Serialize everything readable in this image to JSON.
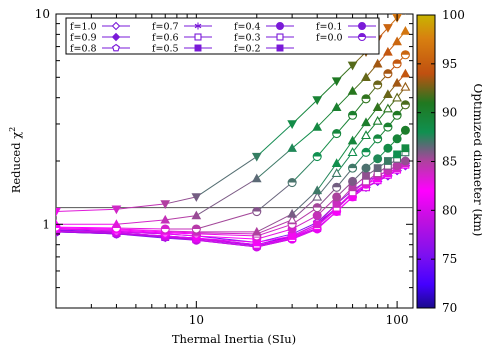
{
  "chart_data": {
    "type": "line",
    "xlabel": "Thermal Inertia (SIu)",
    "ylabel": "Reduced χ",
    "ylabel_sup": "2",
    "x_scale": "log",
    "y_scale": "log",
    "xlim": [
      2,
      120
    ],
    "ylim": [
      0.4,
      10
    ],
    "x_ticks": [
      10,
      100
    ],
    "x_tick_labels": [
      "10",
      "100"
    ],
    "y_ticks": [
      1,
      10
    ],
    "y_tick_labels": [
      "1",
      "10"
    ],
    "reference_line": 1.2,
    "legend_position": "top",
    "x": [
      2,
      4,
      7,
      10,
      20,
      30,
      40,
      50,
      60,
      70,
      80,
      90,
      100,
      110
    ],
    "series": [
      {
        "name": "f=1.0",
        "marker": "diamond-open",
        "y": [
          0.92,
          0.9,
          0.87,
          0.85,
          0.8,
          0.88,
          1.0,
          1.2,
          1.4,
          1.5,
          1.6,
          1.7,
          1.8,
          1.9
        ]
      },
      {
        "name": "f=0.9",
        "marker": "diamond-filled",
        "y": [
          0.93,
          0.91,
          0.88,
          0.86,
          0.8,
          0.88,
          1.0,
          1.2,
          1.4,
          1.55,
          1.65,
          1.75,
          1.85,
          1.95
        ]
      },
      {
        "name": "f=0.8",
        "marker": "pentagon-open",
        "y": [
          0.94,
          0.92,
          0.9,
          0.88,
          0.82,
          0.9,
          1.02,
          1.25,
          1.45,
          1.6,
          1.7,
          1.8,
          1.9,
          2.0
        ]
      },
      {
        "name": "f=0.7",
        "marker": "asterisk",
        "y": [
          0.92,
          0.9,
          0.86,
          0.84,
          0.78,
          0.85,
          0.95,
          1.15,
          1.35,
          1.5,
          1.6,
          1.7,
          1.8,
          1.9
        ]
      },
      {
        "name": "f=0.6",
        "marker": "square-open",
        "y": [
          0.93,
          0.91,
          0.87,
          0.85,
          0.79,
          0.86,
          0.96,
          1.15,
          1.35,
          1.5,
          1.62,
          1.72,
          1.82,
          1.92
        ]
      },
      {
        "name": "f=0.5",
        "marker": "square-filled",
        "y": [
          0.93,
          0.91,
          0.88,
          0.86,
          0.8,
          0.87,
          0.98,
          1.18,
          1.4,
          1.55,
          1.65,
          1.75,
          1.85,
          1.95
        ]
      },
      {
        "name": "f=0.4",
        "marker": "circle-filled",
        "y": [
          0.92,
          0.9,
          0.87,
          0.84,
          0.78,
          0.85,
          0.95,
          1.15,
          1.35,
          1.55,
          1.7,
          1.8,
          1.9,
          2.0
        ]
      },
      {
        "name": "f=0.3",
        "marker": "square-open",
        "y": [
          0.93,
          0.91,
          0.88,
          0.85,
          0.8,
          0.86,
          0.98,
          1.2,
          1.42,
          1.6,
          1.75,
          1.9,
          2.05,
          2.2
        ]
      },
      {
        "name": "f=0.2",
        "marker": "square-filled",
        "y": [
          0.93,
          0.91,
          0.88,
          0.86,
          0.82,
          0.88,
          1.0,
          1.25,
          1.5,
          1.7,
          1.85,
          2.0,
          2.15,
          2.3
        ]
      },
      {
        "name": "f=0.1",
        "marker": "circle-filled",
        "y": [
          0.93,
          0.92,
          0.9,
          0.88,
          0.85,
          0.95,
          1.1,
          1.35,
          1.6,
          1.85,
          2.05,
          2.3,
          2.55,
          2.8
        ]
      },
      {
        "name": "f=0.0",
        "marker": "circle-half",
        "y": [
          0.95,
          0.93,
          0.91,
          0.9,
          0.88,
          1.0,
          1.2,
          1.5,
          1.85,
          2.2,
          2.55,
          2.9,
          3.3,
          3.7
        ]
      },
      {
        "name": "",
        "marker": "triangle-open",
        "y": [
          0.95,
          0.94,
          0.92,
          0.91,
          0.9,
          1.05,
          1.35,
          1.75,
          2.2,
          2.65,
          3.1,
          3.55,
          4.0,
          4.5
        ]
      },
      {
        "name": "",
        "marker": "triangle-filled",
        "y": [
          0.96,
          0.95,
          0.93,
          0.92,
          0.92,
          1.12,
          1.45,
          1.95,
          2.5,
          3.05,
          3.6,
          4.15,
          4.7,
          5.2
        ]
      },
      {
        "name": "",
        "marker": "circle-half",
        "y": [
          0.97,
          0.96,
          0.95,
          0.95,
          1.15,
          1.58,
          2.1,
          2.7,
          3.3,
          3.95,
          4.6,
          5.2,
          5.8,
          6.4
        ]
      },
      {
        "name": "",
        "marker": "triangle-filled",
        "y": [
          1.0,
          1.0,
          1.05,
          1.1,
          1.65,
          2.3,
          2.9,
          3.6,
          4.3,
          5.0,
          5.8,
          6.6,
          7.4,
          8.3
        ]
      },
      {
        "name": "",
        "marker": "triangle-down-filled",
        "y": [
          1.15,
          1.18,
          1.25,
          1.35,
          2.1,
          3.0,
          3.9,
          4.8,
          5.7,
          6.6,
          7.6,
          8.6,
          9.6,
          10.5
        ]
      }
    ],
    "colorbar": {
      "label": "Optimized diameter (km)",
      "min": 70,
      "max": 100,
      "ticks": [
        "70",
        "75",
        "80",
        "85",
        "90",
        "95",
        "100"
      ]
    }
  }
}
